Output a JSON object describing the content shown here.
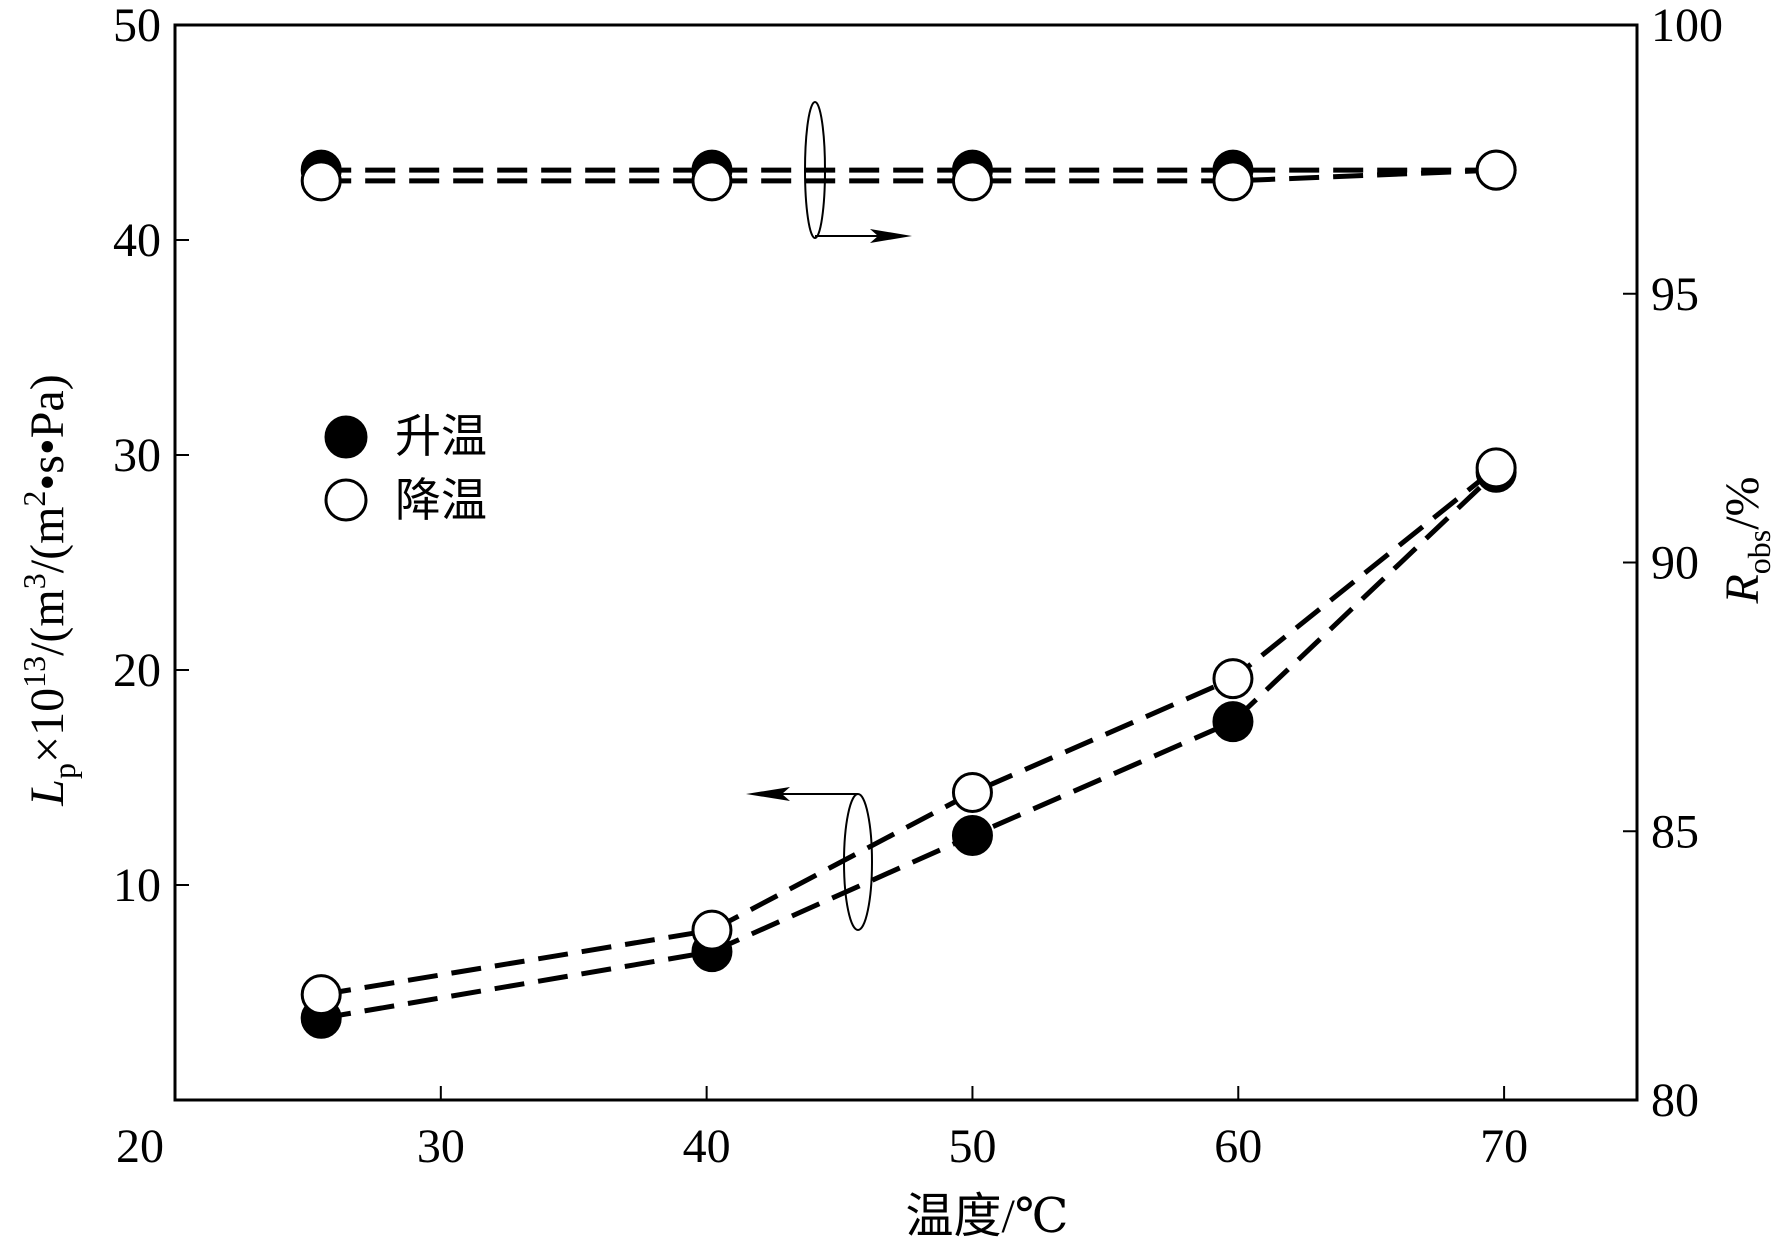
{
  "chart_data": {
    "type": "line",
    "x": [
      25.5,
      40.2,
      50,
      59.8,
      69.7
    ],
    "xlabel": "温度/℃",
    "xlim": [
      20,
      75
    ],
    "xticks": [
      "20",
      "30",
      "40",
      "50",
      "60",
      "70"
    ],
    "ylabel_left": "Lp×10¹³/(m³/(m²·s·Pa)",
    "ylabel_left_parts": {
      "symbol": "L",
      "sub": "p",
      "mult": "×10",
      "exp": "13",
      "unit1": "/(m",
      "exp2": "3",
      "unit2": "/(m",
      "exp3": "2",
      "unit3": "•s•Pa)"
    },
    "ylim_left": [
      0,
      50
    ],
    "yticks_left": [
      "10",
      "20",
      "30",
      "40",
      "50"
    ],
    "ylabel_right": "Robs/%",
    "ylabel_right_parts": {
      "symbol": "R",
      "sub": "obs",
      "unit": "/%"
    },
    "ylim_right": [
      80,
      100
    ],
    "yticks_right": [
      "80",
      "85",
      "90",
      "95",
      "100"
    ],
    "legend": {
      "placement": "center-left",
      "entries": [
        {
          "label": "升温",
          "marker": "filled-circle"
        },
        {
          "label": "降温",
          "marker": "open-circle"
        }
      ]
    },
    "series": [
      {
        "name": "升温",
        "axis": "left",
        "quantity": "Lp",
        "marker": "filled",
        "values": [
          3.8,
          6.9,
          12.3,
          17.6,
          29.2
        ]
      },
      {
        "name": "降温",
        "axis": "left",
        "quantity": "Lp",
        "marker": "open",
        "values": [
          4.9,
          7.9,
          14.3,
          19.6,
          29.4
        ]
      },
      {
        "name": "升温",
        "axis": "right",
        "quantity": "Robs",
        "marker": "filled",
        "values": [
          97.3,
          97.3,
          97.3,
          97.3,
          97.3
        ]
      },
      {
        "name": "降温",
        "axis": "right",
        "quantity": "Robs",
        "marker": "open",
        "values": [
          97.1,
          97.1,
          97.1,
          97.1,
          97.3
        ]
      }
    ],
    "grid": false
  }
}
